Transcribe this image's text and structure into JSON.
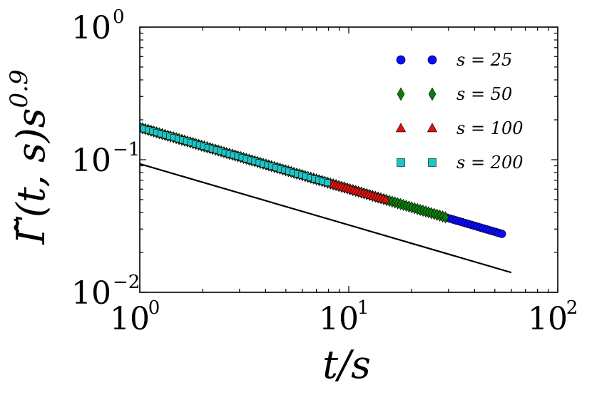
{
  "chart_data": {
    "type": "scatter",
    "xscale": "log",
    "yscale": "log",
    "xlim": [
      1,
      100
    ],
    "ylim": [
      0.01,
      1
    ],
    "xlabel": "t/s",
    "ylabel": "Γ̃(t, s)s^0.9",
    "x_ticks": [
      {
        "base": "10",
        "exp": "0",
        "value": 1
      },
      {
        "base": "10",
        "exp": "1",
        "value": 10
      },
      {
        "base": "10",
        "exp": "2",
        "value": 100
      }
    ],
    "y_ticks": [
      {
        "base": "10",
        "exp": "0",
        "value": 1
      },
      {
        "base": "10",
        "exp": "−1",
        "value": 0.1
      },
      {
        "base": "10",
        "exp": "−2",
        "value": 0.01
      }
    ],
    "legend_position": "top-right",
    "series": [
      {
        "name": "s = 25",
        "marker": "circle",
        "color": "#0a0aff",
        "x_range": [
          1.0,
          54.0
        ],
        "n_points": 120,
        "y_at_x1": 0.175,
        "slope": -0.463
      },
      {
        "name": "s = 50",
        "marker": "diamond",
        "color": "#0a7d0a",
        "x_range": [
          1.0,
          29.0
        ],
        "n_points": 110,
        "y_at_x1": 0.175,
        "slope": -0.463
      },
      {
        "name": "s = 100",
        "marker": "triangle",
        "color": "#e01010",
        "x_range": [
          1.0,
          15.0
        ],
        "n_points": 100,
        "y_at_x1": 0.175,
        "slope": -0.463
      },
      {
        "name": "s = 200",
        "marker": "square",
        "color": "#1cc6c6",
        "x_range": [
          1.0,
          7.9
        ],
        "n_points": 45,
        "y_at_x1": 0.175,
        "slope": -0.463
      }
    ],
    "reference_line": {
      "x": [
        1,
        60
      ],
      "y": [
        0.093,
        0.0141
      ],
      "color": "#000000"
    }
  }
}
